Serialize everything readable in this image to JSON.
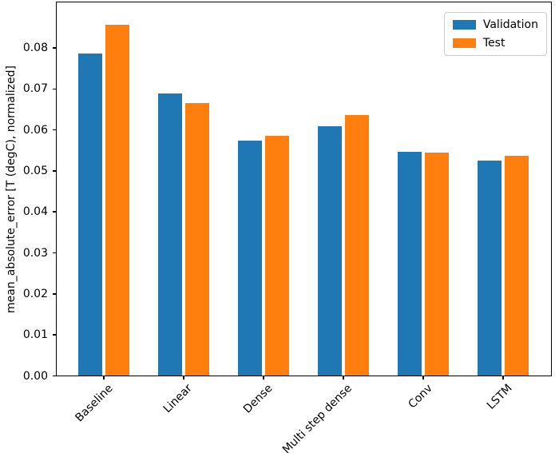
{
  "chart_data": {
    "type": "bar",
    "title": "",
    "xlabel": "",
    "ylabel": "mean_absolute_error [T (degC), normalized]",
    "categories": [
      "Baseline",
      "Linear",
      "Dense",
      "Multi step dense",
      "Conv",
      "LSTM"
    ],
    "series": [
      {
        "name": "Validation",
        "color": "#1f77b4",
        "values": [
          0.0785,
          0.0688,
          0.0573,
          0.0608,
          0.0545,
          0.0525
        ]
      },
      {
        "name": "Test",
        "color": "#ff7f0e",
        "values": [
          0.0855,
          0.0664,
          0.0584,
          0.0635,
          0.0543,
          0.0535
        ]
      }
    ],
    "ylim": [
      0,
      0.091
    ],
    "y_ticks": [
      "0.00",
      "0.01",
      "0.02",
      "0.03",
      "0.04",
      "0.05",
      "0.06",
      "0.07",
      "0.08"
    ],
    "y_tick_values": [
      0,
      0.01,
      0.02,
      0.03,
      0.04,
      0.05,
      0.06,
      0.07,
      0.08
    ],
    "x_tick_rotation_deg": 45,
    "grid": false,
    "legend": {
      "position": "upper right"
    },
    "axis_color": "#000000",
    "background_color": "#ffffff"
  }
}
